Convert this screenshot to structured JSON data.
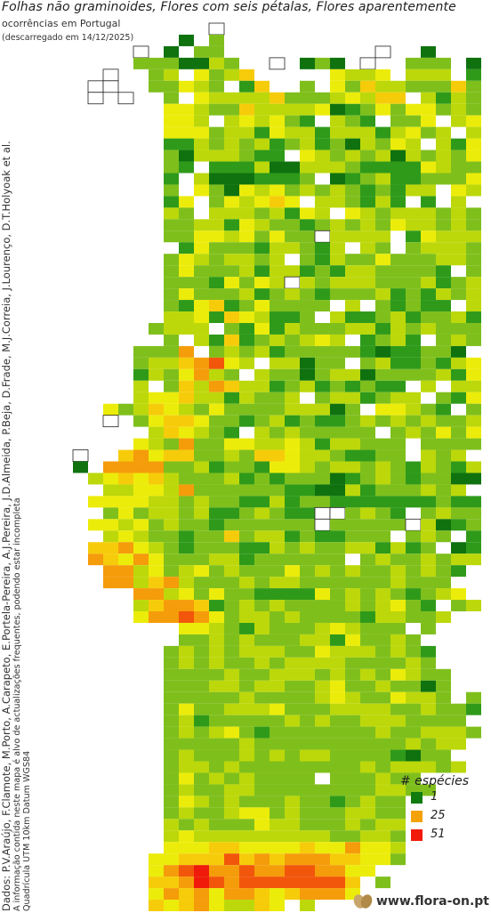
{
  "title": "Folhas não graminoides, Flores com seis pétalas, Flores aparentemente",
  "subtitle": "ocorrências em Portugal",
  "downloaded": "(descarregado em 14/12/2025)",
  "side": {
    "credits": "Dados: P.V.Araújo, F.Clamote, M.Porto, A.Carapeto, E.Portela-Pereira, A.J.Pereira, J.D.Almeida, P.Beja, D.Frade, M.J.Correia, J.Lourenço, D.T.Holyoak et al.",
    "note1": "A informação contida neste mapa é alvo de actualizações frequentes, podendo estar incompleta",
    "note2": "Quadrícula UTM 10km Datum WGS84"
  },
  "legend": {
    "title": "# espécies",
    "items": [
      {
        "label": "1",
        "color": "#107c10"
      },
      {
        "label": "25",
        "color": "#f5a20a"
      },
      {
        "label": "51",
        "color": "#f21a0a"
      }
    ]
  },
  "brand": "www.flora-on.pt",
  "color_scale": {
    "min": 1,
    "mid": 25,
    "max": 51,
    "colors": [
      "#107c10",
      "#f2f200",
      "#f21a0a"
    ]
  },
  "grid": {
    "comment_rows": "Each string is one grid row; character per column. '.' = empty, '#' = empty outlined square, '1'-'9' = species-count class (1=dark green .. 9=red).",
    "rows": [
      "...........#...........",
      ".........1.3...........",
      "......#.1.33..........#..1..",
      "......3331143..#.131.#..333.1",
      "....#..34.5346.....5445.444.2.#",
      "...##..33543.26..3.53644333635.#",
      "...#.#..3.54444633345466.4243324#",
      "........55433644445123535534332.2",
      "........554.454532.432.335.45346.3.",
      "........5553442544244424534.4534463.",
      "........22434342342314354.4253344.2.",
      "........31444322.54343414343525543.##.",
      "........32.22241144432222543335342..#",
      "........2.41112223.1234223335442.",
      "........3.5315453434323244.54#3.",
      "........25.354565.443242.2.4.3.",
      "........43.44434254.5434443434.",
      "........33442543323434354434345.",
      "........3355453533#4444.25444433.",
      ".........25333244324.43.34443244.",
      "........35434434.32433533344342.",
      "........3533342442324433332.3444",
      "........33325354#43444333423434",
      "........3533342343233342324344.",
      "........32562353333.4.32322.41.",
      "........4452654223.422342334231",
      ".......3444.3252433344243433321",
      "........3.4262343454.2342.34341",
      "......3337.34342333332122331.31",
      "......34467854.44133.3422324522",
      "......2435743.433134413333425.23",
      "......4.3647644234232322.4.4434.",
      "......45564424334.3442344.325453",
      "....53465435333344413.55432.32.",
      "....#.3566533234232234343433434",
      ".......465432.43433333.343535#3",
      "......543733554454244333.3333.",
      "..#..6756633436654432233.434.3",
      "..1.77773342332554344343243241",
      "...45656433342323331234323311..",
      "....445547333333221142333434.##",
      "...555544343322423322222223223.##",
      "....35344342234322##3432.3433434#",
      "...554534332333333#33333#41233",
      "....4543323363442322333.343.2##.",
      "...66754323332243433442423.122#",
      "...76575333442333333.34334344",
      "....774534534333534343343432.#",
      "....77467433343443333334333",
      "......7745353322225343432345",
      "......46776234343333434532.34",
      "......577875344343333244334",
      ".........554324333454333.3.",
      ".........3343433344253343",
      "........343434443354443432",
      "........343433434444333343",
      "........3333433444343435433",
      "........3334434433453343313",
      "........3333343333454335443.3",
      "........3533444533344443343323",
      "........34233333434334443333.1",
      "........3434532333333343344433",
      "........33333433333333334344",
      "........3433343434433332133",
      "........34434333333334344434",
      "........3534343333.333433",
      "........343344333333334433",
      "........3543433343323433.",
      "........3433455343334433.",
      "........4343335443334344",
      "........4544444444433443.",
      "........5556655556557554",
      ".......55666867677766553",
      ".......578977877887755.",
      ".......66798788888886.3",
      ".......57675776567775",
      ".......656754465.4"
    ]
  }
}
